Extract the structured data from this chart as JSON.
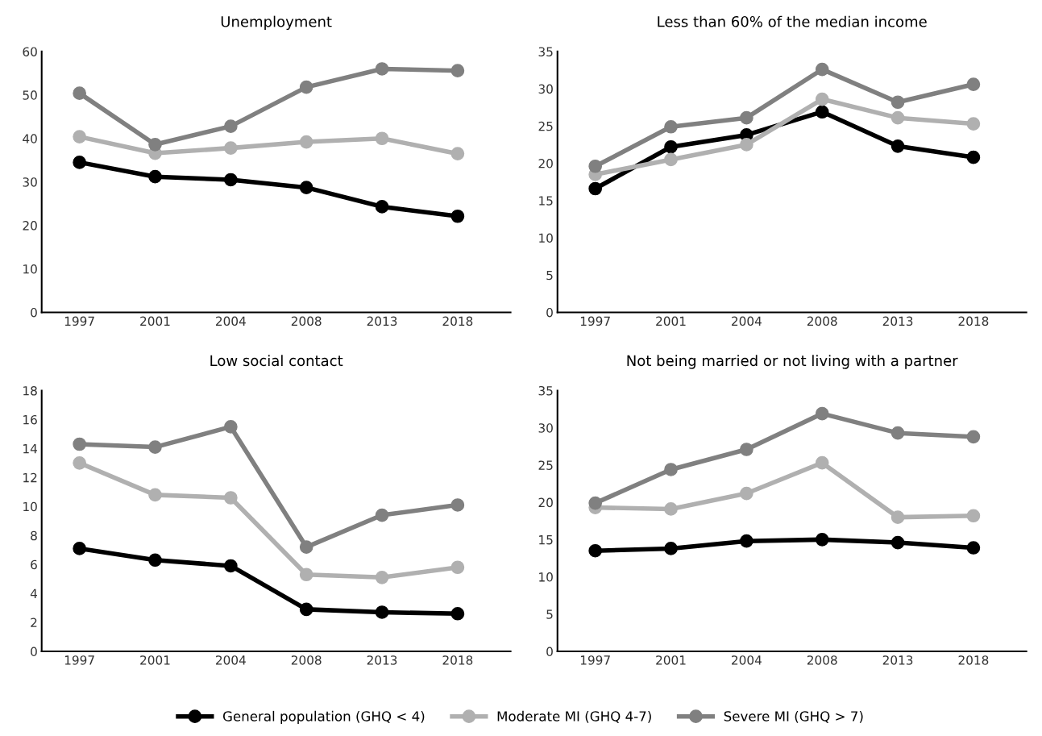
{
  "chart_data": [
    {
      "type": "line",
      "title": "Unemployment",
      "categories": [
        "1997",
        "2001",
        "2004",
        "2008",
        "2013",
        "2018"
      ],
      "ylim": [
        0,
        60
      ],
      "yticks": [
        0,
        10,
        20,
        30,
        40,
        50,
        60
      ],
      "grid": false,
      "marker": "circle",
      "line_style": "solid",
      "legend": "bottom",
      "series": [
        {
          "name": "General population (GHQ < 4)",
          "color": "#000000",
          "values": [
            34.5,
            31.2,
            30.5,
            28.7,
            24.3,
            22.1
          ]
        },
        {
          "name": "Moderate MI (GHQ 4-7)",
          "color": "#b0b0b0",
          "values": [
            40.4,
            36.6,
            37.8,
            39.2,
            40.0,
            36.5
          ]
        },
        {
          "name": "Severe MI (GHQ > 7)",
          "color": "#808080",
          "values": [
            50.4,
            38.6,
            42.8,
            51.8,
            56.0,
            55.6
          ]
        }
      ]
    },
    {
      "type": "line",
      "title": "Less than 60% of the median income",
      "categories": [
        "1997",
        "2001",
        "2004",
        "2008",
        "2013",
        "2018"
      ],
      "ylim": [
        0,
        35
      ],
      "yticks": [
        0,
        5,
        10,
        15,
        20,
        25,
        30,
        35
      ],
      "grid": false,
      "marker": "circle",
      "line_style": "solid",
      "series": [
        {
          "color": "#000000",
          "values": [
            16.6,
            22.2,
            23.8,
            26.9,
            22.3,
            20.8
          ]
        },
        {
          "color": "#b0b0b0",
          "values": [
            18.5,
            20.5,
            22.5,
            28.6,
            26.1,
            25.3
          ]
        },
        {
          "color": "#808080",
          "values": [
            19.6,
            24.9,
            26.1,
            32.6,
            28.2,
            30.6
          ]
        }
      ]
    },
    {
      "type": "line",
      "title": "Low social contact",
      "categories": [
        "1997",
        "2001",
        "2004",
        "2008",
        "2013",
        "2018"
      ],
      "ylim": [
        0,
        18
      ],
      "yticks": [
        0,
        2,
        4,
        6,
        8,
        10,
        12,
        14,
        16,
        18
      ],
      "grid": false,
      "marker": "circle",
      "line_style": "solid",
      "series": [
        {
          "color": "#000000",
          "values": [
            7.1,
            6.3,
            5.9,
            2.9,
            2.7,
            2.6
          ]
        },
        {
          "color": "#b0b0b0",
          "values": [
            13.0,
            10.8,
            10.6,
            5.3,
            5.1,
            5.8
          ]
        },
        {
          "color": "#808080",
          "values": [
            14.3,
            14.1,
            15.5,
            7.2,
            9.4,
            10.1
          ]
        }
      ]
    },
    {
      "type": "line",
      "title": "Not being married or not living with a partner",
      "categories": [
        "1997",
        "2001",
        "2004",
        "2008",
        "2013",
        "2018"
      ],
      "ylim": [
        0,
        35
      ],
      "yticks": [
        0,
        5,
        10,
        15,
        20,
        25,
        30,
        35
      ],
      "grid": false,
      "marker": "circle",
      "line_style": "solid",
      "series": [
        {
          "color": "#000000",
          "values": [
            13.5,
            13.8,
            14.8,
            15.0,
            14.6,
            13.9
          ]
        },
        {
          "color": "#b0b0b0",
          "values": [
            19.3,
            19.1,
            21.2,
            25.3,
            18.0,
            18.2
          ]
        },
        {
          "color": "#808080",
          "values": [
            19.9,
            24.4,
            27.1,
            31.9,
            29.3,
            28.8
          ]
        }
      ]
    }
  ]
}
